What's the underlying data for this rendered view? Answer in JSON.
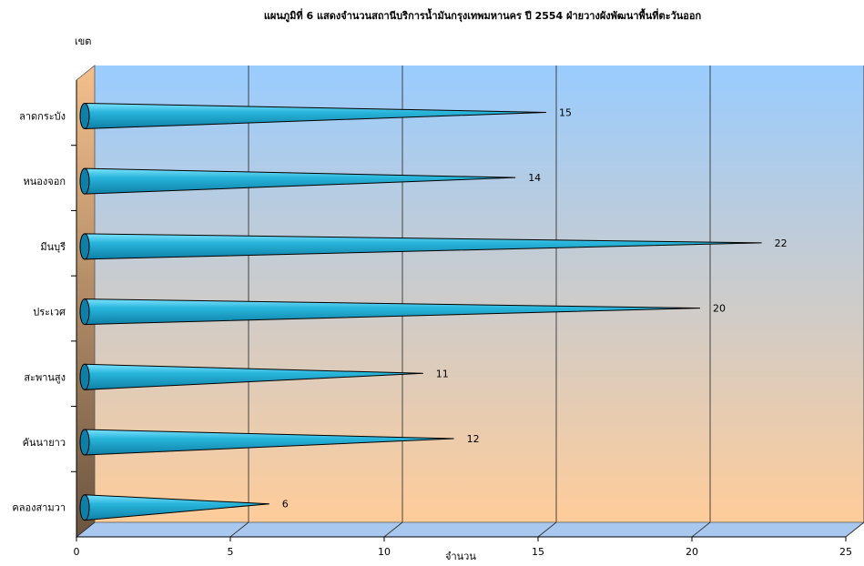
{
  "chart_data": {
    "type": "bar",
    "orientation": "horizontal",
    "title": "แผนภูมิที่ 6 แสดงจำนวนสถานีบริการน้ำมันกรุงเทพมหานคร ปี 2554 ฝ่ายวางผังพัฒนาพื้นที่ตะวันออก",
    "ylabel": "เขต",
    "xlabel": "จำนวน",
    "categories": [
      "ลาดกระบัง",
      "หนองจอก",
      "มีนบุรี",
      "ประเวศ",
      "สะพานสูง",
      "คันนายาว",
      "คลองสามวา"
    ],
    "values": [
      15,
      14,
      22,
      20,
      11,
      12,
      6
    ],
    "xlim": [
      0,
      25
    ],
    "xticks": [
      "0",
      "5",
      "10",
      "15",
      "20",
      "25"
    ],
    "grid": true,
    "legend": "none",
    "colors": {
      "bar": "#29b6dc",
      "bar_dark": "#0e7fa6",
      "wall_top": "#99ccff",
      "wall_bottom": "#ffcc99",
      "side_wall_light": "#f4c08c",
      "side_wall_dark": "#6b5440",
      "floor": "#a9c8f0"
    }
  }
}
